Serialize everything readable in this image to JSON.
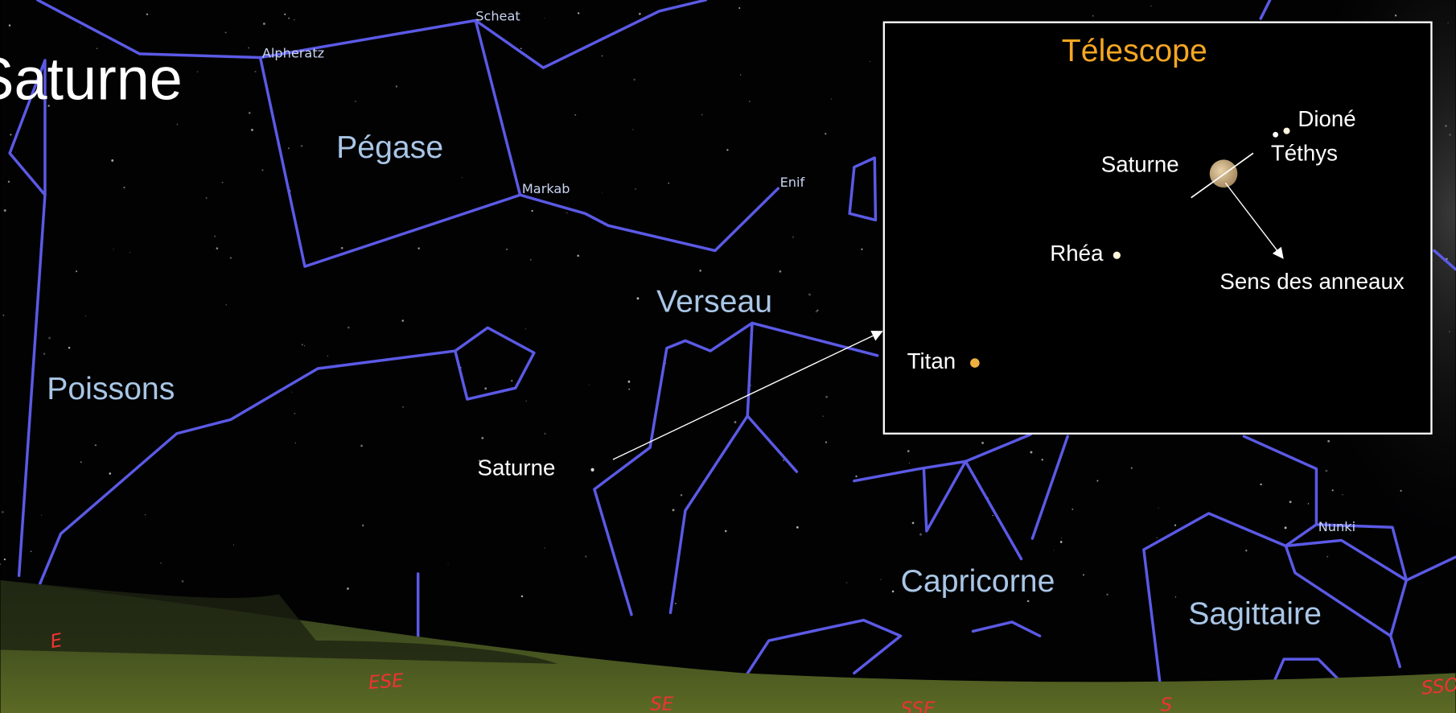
{
  "title": "Saturne",
  "stars": [
    "Scheat",
    "Alpheratz",
    "Markab",
    "Enif",
    "Nunki"
  ],
  "constellations": [
    "Pégase",
    "Verseau",
    "Poissons",
    "Capricorne",
    "Sagittaire"
  ],
  "planet_label": "Saturne",
  "inset": {
    "title": "Télescope",
    "planet": "Saturne",
    "moons": [
      "Dioné",
      "Téthys",
      "Rhéa",
      "Titan"
    ],
    "rings_note": "Sens des anneaux"
  },
  "directions": [
    "E",
    "ESE",
    "SE",
    "SSE",
    "S",
    "SSO"
  ]
}
